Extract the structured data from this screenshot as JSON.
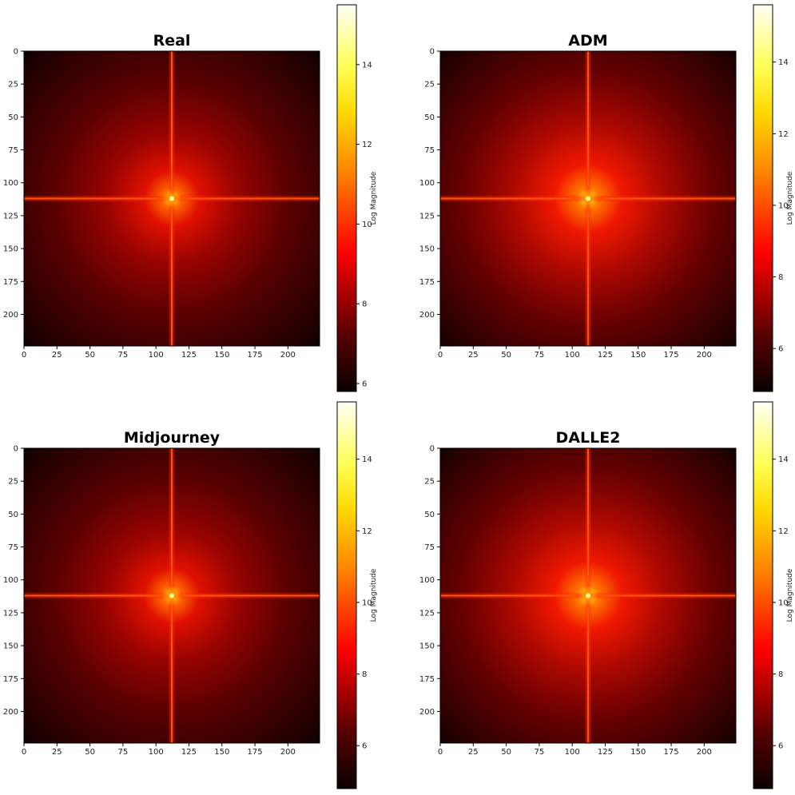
{
  "chart_data": [
    {
      "type": "heatmap",
      "title": "Real",
      "xlim": [
        0,
        224
      ],
      "ylim": [
        224,
        0
      ],
      "xticks": [
        0,
        25,
        50,
        75,
        100,
        125,
        150,
        175,
        200
      ],
      "yticks": [
        0,
        25,
        50,
        75,
        100,
        125,
        150,
        175,
        200
      ],
      "center": [
        112,
        112
      ],
      "colormap": "hot",
      "colorbar": {
        "label": "Log Magnitude",
        "range": [
          5.8,
          15.5
        ],
        "ticks": [
          6,
          8,
          10,
          12,
          14
        ]
      }
    },
    {
      "type": "heatmap",
      "title": "ADM",
      "xlim": [
        0,
        224
      ],
      "ylim": [
        224,
        0
      ],
      "xticks": [
        0,
        25,
        50,
        75,
        100,
        125,
        150,
        175,
        200
      ],
      "yticks": [
        0,
        25,
        50,
        75,
        100,
        125,
        150,
        175,
        200
      ],
      "center": [
        112,
        112
      ],
      "colormap": "hot",
      "colorbar": {
        "label": "Log Magnitude",
        "range": [
          4.8,
          15.6
        ],
        "ticks": [
          6,
          8,
          10,
          12,
          14
        ]
      }
    },
    {
      "type": "heatmap",
      "title": "Midjourney",
      "xlim": [
        0,
        224
      ],
      "ylim": [
        224,
        0
      ],
      "xticks": [
        0,
        25,
        50,
        75,
        100,
        125,
        150,
        175,
        200
      ],
      "yticks": [
        0,
        25,
        50,
        75,
        100,
        125,
        150,
        175,
        200
      ],
      "center": [
        112,
        112
      ],
      "colormap": "hot",
      "colorbar": {
        "label": "Log Magnitude",
        "range": [
          4.8,
          15.6
        ],
        "ticks": [
          6,
          8,
          10,
          12,
          14
        ]
      }
    },
    {
      "type": "heatmap",
      "title": "DALLE2",
      "xlim": [
        0,
        224
      ],
      "ylim": [
        224,
        0
      ],
      "xticks": [
        0,
        25,
        50,
        75,
        100,
        125,
        150,
        175,
        200
      ],
      "yticks": [
        0,
        25,
        50,
        75,
        100,
        125,
        150,
        175,
        200
      ],
      "center": [
        112,
        112
      ],
      "colormap": "hot",
      "colorbar": {
        "label": "Log Magnitude",
        "range": [
          4.8,
          15.6
        ],
        "ticks": [
          6,
          8,
          10,
          12,
          14
        ]
      }
    }
  ],
  "colors": {
    "background": "#ffffff",
    "axis": "#000000",
    "text": "#222222"
  }
}
